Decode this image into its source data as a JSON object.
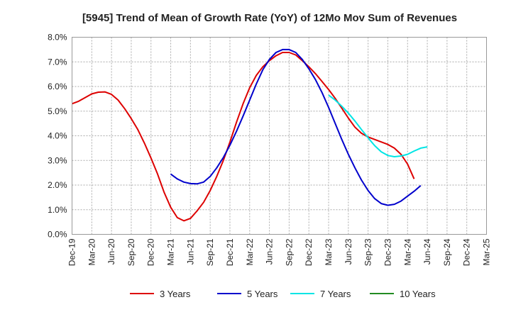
{
  "chart_data": {
    "type": "line",
    "title": "[5945]  Trend of Mean of Growth Rate (YoY) of 12Mo Mov Sum of Revenues",
    "xlabel": "",
    "ylabel": "",
    "ylim": [
      0,
      8
    ],
    "y_ticks": [
      "0.0%",
      "1.0%",
      "2.0%",
      "3.0%",
      "4.0%",
      "5.0%",
      "6.0%",
      "7.0%",
      "8.0%"
    ],
    "x_ticks": [
      "Dec-19",
      "Mar-20",
      "Jun-20",
      "Sep-20",
      "Dec-20",
      "Mar-21",
      "Jun-21",
      "Sep-21",
      "Dec-21",
      "Mar-22",
      "Jun-22",
      "Sep-22",
      "Dec-22",
      "Mar-23",
      "Jun-23",
      "Sep-23",
      "Dec-23",
      "Mar-24",
      "Jun-24",
      "Sep-24",
      "Dec-24",
      "Mar-25"
    ],
    "grid": true,
    "legend_position": "bottom",
    "series": [
      {
        "name": "3 Years",
        "color": "#dd0000",
        "start_month": 0,
        "values": [
          5.3,
          5.4,
          5.55,
          5.7,
          5.77,
          5.78,
          5.68,
          5.45,
          5.1,
          4.7,
          4.25,
          3.7,
          3.1,
          2.45,
          1.7,
          1.1,
          0.68,
          0.55,
          0.65,
          0.95,
          1.3,
          1.78,
          2.35,
          3.0,
          3.75,
          4.55,
          5.3,
          5.95,
          6.45,
          6.8,
          7.05,
          7.25,
          7.38,
          7.38,
          7.28,
          7.05,
          6.8,
          6.52,
          6.2,
          5.88,
          5.52,
          5.12,
          4.72,
          4.35,
          4.1,
          3.95,
          3.85,
          3.75,
          3.65,
          3.5,
          3.25,
          2.85,
          2.25
        ]
      },
      {
        "name": "5 Years",
        "color": "#0000cc",
        "start_month": 15,
        "values": [
          2.45,
          2.25,
          2.12,
          2.06,
          2.05,
          2.12,
          2.35,
          2.7,
          3.12,
          3.62,
          4.18,
          4.8,
          5.45,
          6.1,
          6.68,
          7.1,
          7.38,
          7.5,
          7.5,
          7.38,
          7.1,
          6.72,
          6.28,
          5.75,
          5.15,
          4.5,
          3.85,
          3.25,
          2.7,
          2.2,
          1.78,
          1.45,
          1.25,
          1.18,
          1.22,
          1.35,
          1.55,
          1.75,
          1.98
        ]
      },
      {
        "name": "7 Years",
        "color": "#00e5e5",
        "start_month": 39,
        "values": [
          5.65,
          5.45,
          5.2,
          4.92,
          4.6,
          4.25,
          3.92,
          3.6,
          3.35,
          3.2,
          3.15,
          3.18,
          3.25,
          3.38,
          3.5,
          3.55
        ]
      },
      {
        "name": "10 Years",
        "color": "#228b22",
        "start_month": 0,
        "values": []
      }
    ]
  }
}
